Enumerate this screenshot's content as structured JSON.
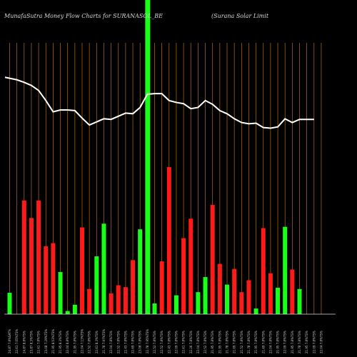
{
  "chart_data": {
    "type": "bar",
    "title": "MunafaSutra  Money Flow  Charts for SURANASOL_BE",
    "subtitle": "(Surana  Solar Limit",
    "highlight_index": 19,
    "categories": [
      "24.87 7.8%SAT%",
      "22.61 7.05%TS%",
      "24.87 8.8%TS%",
      "23.87 8.3%TS%",
      "22.61 7.8%TS%",
      "23.08 7.29%TS%",
      "21.95 8.53%TS%",
      "21.95 8.3%TS%",
      "22.04 8.8%TS%",
      "21.95 7.8%TS%",
      "22.04 7.13%TS%",
      "22.52 7.8%TS%",
      "22.61 8.3%TS%",
      "21.78 7.97%TS%",
      "22.04 7.8%TS%",
      "22.52 7.8%TS%",
      "22.43 7.8%TS%",
      "22.69 7.8%TS%",
      "23.08 7.8%TS%",
      "22.78 7.95%TS%",
      "22.52 7.8%TS%",
      "22.52 7.8%TS%",
      "22.43 7.8%TS%",
      "22.09 7.8%TS%",
      "22.61 7.8%TS%",
      "22.26 7.8%TS%",
      "22.04 7.8%TS%",
      "22.52 7.8%TS%",
      "21.95 7.8%TS%",
      "21.95 7.8%TS%",
      "21.78 7.8%TS%",
      "21.69 7.8%TS%",
      "21.52 7.8%TS%",
      "21.78 7.8%TS%",
      "21.95 7.8%TS%",
      "21.69 7.8%TS%",
      "22.04 7.8%TS%",
      "21.95 7.8%TS%",
      "22.09 7.8%TS%",
      "21.95 7.8%TS%",
      "21.78 7.8%TS%",
      "21.95 7.8%TS%",
      "22.09 7.8%TS%",
      "22.04 7.8%TS%"
    ],
    "bars": [
      {
        "value": 34,
        "color": "green"
      },
      {
        "value": 0,
        "color": "red"
      },
      {
        "value": 181,
        "color": "red"
      },
      {
        "value": 153,
        "color": "red"
      },
      {
        "value": 181,
        "color": "red"
      },
      {
        "value": 108,
        "color": "red"
      },
      {
        "value": 113,
        "color": "red"
      },
      {
        "value": 67,
        "color": "green"
      },
      {
        "value": 5,
        "color": "green"
      },
      {
        "value": 15,
        "color": "green"
      },
      {
        "value": 138,
        "color": "red"
      },
      {
        "value": 40,
        "color": "red"
      },
      {
        "value": 92,
        "color": "green"
      },
      {
        "value": 144,
        "color": "green"
      },
      {
        "value": 33,
        "color": "red"
      },
      {
        "value": 46,
        "color": "red"
      },
      {
        "value": 43,
        "color": "red"
      },
      {
        "value": 86,
        "color": "red"
      },
      {
        "value": 135,
        "color": "green"
      },
      {
        "value": 500,
        "color": "green"
      },
      {
        "value": 17,
        "color": "green"
      },
      {
        "value": 84,
        "color": "red"
      },
      {
        "value": 234,
        "color": "red"
      },
      {
        "value": 30,
        "color": "green"
      },
      {
        "value": 121,
        "color": "red"
      },
      {
        "value": 152,
        "color": "red"
      },
      {
        "value": 35,
        "color": "green"
      },
      {
        "value": 59,
        "color": "green"
      },
      {
        "value": 174,
        "color": "red"
      },
      {
        "value": 80,
        "color": "red"
      },
      {
        "value": 47,
        "color": "green"
      },
      {
        "value": 72,
        "color": "red"
      },
      {
        "value": 35,
        "color": "red"
      },
      {
        "value": 54,
        "color": "red"
      },
      {
        "value": 9,
        "color": "green"
      },
      {
        "value": 137,
        "color": "red"
      },
      {
        "value": 65,
        "color": "red"
      },
      {
        "value": 42,
        "color": "green"
      },
      {
        "value": 139,
        "color": "green"
      },
      {
        "value": 71,
        "color": "red"
      },
      {
        "value": 40,
        "color": "green"
      },
      {
        "value": 0,
        "color": "red"
      },
      {
        "value": 0,
        "color": "red"
      },
      {
        "value": 0,
        "color": "red"
      }
    ],
    "line": [
      123,
      127,
      131,
      136,
      144,
      160,
      178,
      175,
      175,
      176,
      188,
      199,
      194,
      189,
      190,
      185,
      180,
      181,
      171,
      150,
      149,
      149,
      160,
      163,
      165,
      173,
      171,
      160,
      166,
      176,
      181,
      189,
      195,
      197,
      196,
      203,
      204,
      202,
      189,
      195,
      190,
      190,
      190,
      190
    ],
    "ylim": [
      0,
      500
    ],
    "line_ylim": [
      0,
      500
    ],
    "colors": {
      "background": "#000000",
      "grid": "#b46f0d",
      "red": "#ff1a1a",
      "green": "#1aff1a",
      "line": "#ffffff",
      "baseline": "#dddddd"
    },
    "grid": true,
    "legend": "none"
  }
}
